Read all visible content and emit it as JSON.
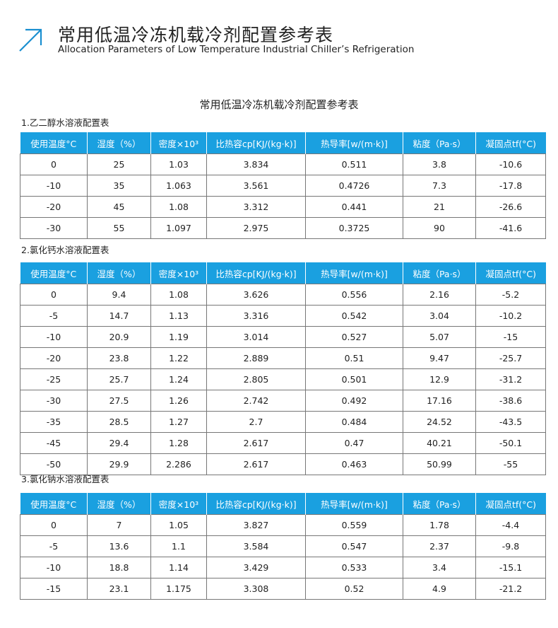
{
  "header": {
    "title_cn": "常用低温冷冻机载冷剂配置参考表",
    "title_en": "Allocation Parameters of Low Temperature Industrial Chiller’s Refrigeration",
    "accent": "#1a8fd0"
  },
  "doc_title": "常用低温冷冻机载冷剂配置参考表",
  "columns": [
    "使用温度°C",
    "湿度（%）",
    "密度×10³",
    "比热容cp[KJ/(kg·k)]",
    "热导率[w/(m·k)]",
    "粘度（Pa·s）",
    "凝固点tf(°C)"
  ],
  "header_color": "#1aa0e0",
  "tables": [
    {
      "title": "1.乙二醇水溶液配置表",
      "rows": [
        [
          "0",
          "25",
          "1.03",
          "3.834",
          "0.511",
          "3.8",
          "-10.6"
        ],
        [
          "-10",
          "35",
          "1.063",
          "3.561",
          "0.4726",
          "7.3",
          "-17.8"
        ],
        [
          "-20",
          "45",
          "1.08",
          "3.312",
          "0.441",
          "21",
          "-26.6"
        ],
        [
          "-30",
          "55",
          "1.097",
          "2.975",
          "0.3725",
          "90",
          "-41.6"
        ]
      ]
    },
    {
      "title": "2.氯化钙水溶液配置表",
      "rows": [
        [
          "0",
          "9.4",
          "1.08",
          "3.626",
          "0.556",
          "2.16",
          "-5.2"
        ],
        [
          "-5",
          "14.7",
          "1.13",
          "3.316",
          "0.542",
          "3.04",
          "-10.2"
        ],
        [
          "-10",
          "20.9",
          "1.19",
          "3.014",
          "0.527",
          "5.07",
          "-15"
        ],
        [
          "-20",
          "23.8",
          "1.22",
          "2.889",
          "0.51",
          "9.47",
          "-25.7"
        ],
        [
          "-25",
          "25.7",
          "1.24",
          "2.805",
          "0.501",
          "12.9",
          "-31.2"
        ],
        [
          "-30",
          "27.5",
          "1.26",
          "2.742",
          "0.492",
          "17.16",
          "-38.6"
        ],
        [
          "-35",
          "28.5",
          "1.27",
          "2.7",
          "0.484",
          "24.52",
          "-43.5"
        ],
        [
          "-45",
          "29.4",
          "1.28",
          "2.617",
          "0.47",
          "40.21",
          "-50.1"
        ],
        [
          "-50",
          "29.9",
          "2.286",
          "2.617",
          "0.463",
          "50.99",
          "-55"
        ]
      ]
    },
    {
      "title": "3.氯化钠水溶液配置表",
      "rows": [
        [
          "0",
          "7",
          "1.05",
          "3.827",
          "0.559",
          "1.78",
          "-4.4"
        ],
        [
          "-5",
          "13.6",
          "1.1",
          "3.584",
          "0.547",
          "2.37",
          "-9.8"
        ],
        [
          "-10",
          "18.8",
          "1.14",
          "3.429",
          "0.533",
          "3.4",
          "-15.1"
        ],
        [
          "-15",
          "23.1",
          "1.175",
          "3.308",
          "0.52",
          "4.9",
          "-21.2"
        ]
      ]
    }
  ]
}
